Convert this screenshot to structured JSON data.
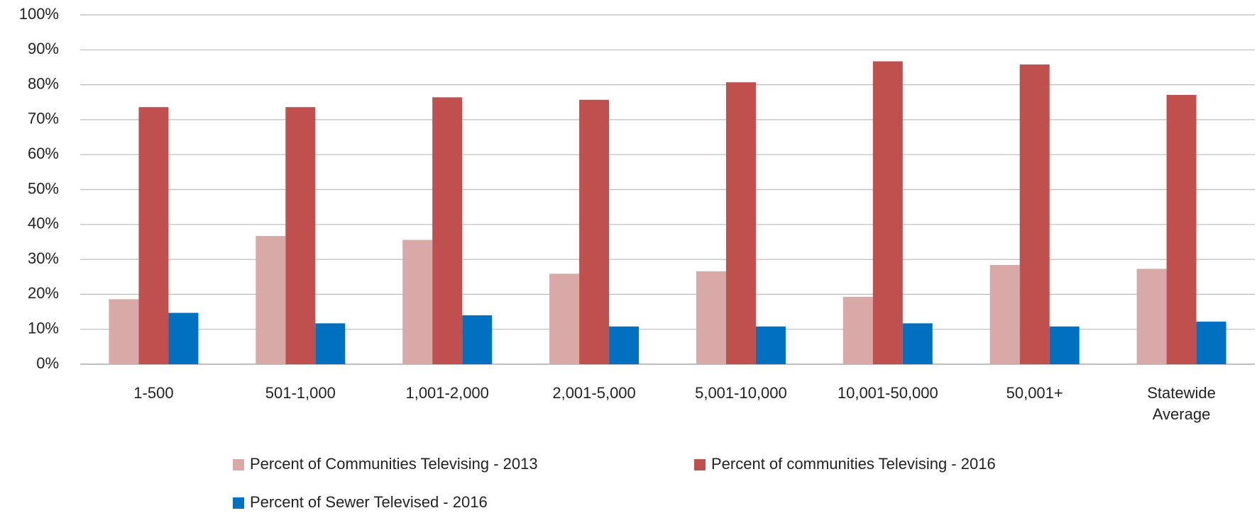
{
  "chart_data": {
    "type": "bar",
    "categories": [
      "1-500",
      "501-1,000",
      "1,001-2,000",
      "2,001-5,000",
      "5,001-10,000",
      "10,001-50,000",
      "50,001+",
      "Statewide Average"
    ],
    "series": [
      {
        "name": "Percent of Communities Televising - 2013",
        "color": "#d9a9a8",
        "values": [
          18.6,
          36.7,
          35.6,
          25.9,
          26.6,
          19.3,
          28.4,
          27.3
        ]
      },
      {
        "name": "Percent of communities Televising - 2016",
        "color": "#c0504d",
        "values": [
          73.6,
          73.6,
          76.4,
          75.7,
          80.7,
          86.7,
          85.8,
          77.1
        ]
      },
      {
        "name": "Percent of Sewer Televised - 2016",
        "color": "#0070c0",
        "values": [
          14.7,
          11.7,
          14.0,
          10.8,
          10.8,
          11.7,
          10.8,
          12.2
        ]
      }
    ],
    "ylim": [
      0,
      100
    ],
    "yticks": [
      {
        "value": 0,
        "label": "0%"
      },
      {
        "value": 10,
        "label": "10%"
      },
      {
        "value": 20,
        "label": "20%"
      },
      {
        "value": 30,
        "label": "30%"
      },
      {
        "value": 40,
        "label": "40%"
      },
      {
        "value": 50,
        "label": "50%"
      },
      {
        "value": 60,
        "label": "60%"
      },
      {
        "value": 70,
        "label": "70%"
      },
      {
        "value": 80,
        "label": "80%"
      },
      {
        "value": 90,
        "label": "90%"
      },
      {
        "value": 100,
        "label": "100%"
      }
    ],
    "grid": true
  }
}
